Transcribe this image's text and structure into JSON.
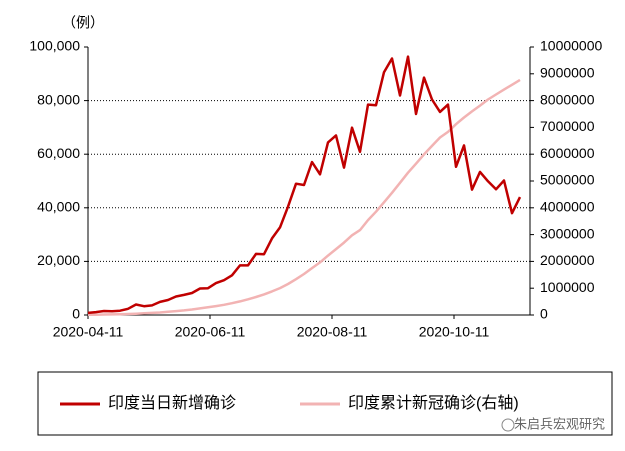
{
  "chart_data": {
    "type": "line",
    "unit_label": "（例）",
    "x": [
      "2020-04-11",
      "2020-04-15",
      "2020-04-19",
      "2020-04-23",
      "2020-04-27",
      "2020-05-01",
      "2020-05-05",
      "2020-05-09",
      "2020-05-13",
      "2020-05-17",
      "2020-05-21",
      "2020-05-25",
      "2020-05-29",
      "2020-06-02",
      "2020-06-06",
      "2020-06-10",
      "2020-06-14",
      "2020-06-18",
      "2020-06-22",
      "2020-06-26",
      "2020-06-30",
      "2020-07-04",
      "2020-07-08",
      "2020-07-12",
      "2020-07-16",
      "2020-07-20",
      "2020-07-24",
      "2020-07-28",
      "2020-08-01",
      "2020-08-05",
      "2020-08-09",
      "2020-08-13",
      "2020-08-17",
      "2020-08-21",
      "2020-08-25",
      "2020-08-29",
      "2020-09-02",
      "2020-09-06",
      "2020-09-10",
      "2020-09-14",
      "2020-09-18",
      "2020-09-22",
      "2020-09-26",
      "2020-09-30",
      "2020-10-04",
      "2020-10-08",
      "2020-10-12",
      "2020-10-16",
      "2020-10-20",
      "2020-10-24",
      "2020-10-28",
      "2020-11-01",
      "2020-11-05",
      "2020-11-09",
      "2020-11-13"
    ],
    "series": [
      {
        "name": "印度当日新增确诊",
        "color": "#c00000",
        "values": [
          800,
          1100,
          1500,
          1400,
          1600,
          2300,
          3900,
          3300,
          3600,
          4900,
          5600,
          6900,
          7500,
          8200,
          9900,
          10000,
          11900,
          13000,
          14800,
          18500,
          18500,
          22800,
          22700,
          28600,
          32700,
          40400,
          49000,
          48500,
          57100,
          52500,
          64400,
          67000,
          55000,
          69900,
          60900,
          78500,
          78300,
          90600,
          95700,
          81900,
          96400,
          75000,
          88600,
          80400,
          75800,
          78500,
          55300,
          63300,
          46800,
          53400,
          49900,
          46900,
          50200,
          38000,
          44000
        ]
      },
      {
        "name": "印度累计新冠确诊(右轴)",
        "color": "#f2b3b3",
        "axis": "y2",
        "values": [
          7600,
          12000,
          17000,
          23000,
          29000,
          37000,
          49000,
          62000,
          78000,
          95000,
          118000,
          145000,
          173000,
          207000,
          246000,
          286000,
          332000,
          381000,
          440000,
          508000,
          585000,
          673000,
          767000,
          879000,
          1003000,
          1155000,
          1337000,
          1531000,
          1750000,
          1964000,
          2215000,
          2459000,
          2702000,
          2975000,
          3167000,
          3542000,
          3853000,
          4204000,
          4560000,
          4931000,
          5308000,
          5647000,
          5992000,
          6310000,
          6623000,
          6833000,
          7120000,
          7370000,
          7597000,
          7814000,
          8040000,
          8229000,
          8411000,
          8591000,
          8773000
        ]
      }
    ],
    "xlim": [
      "2020-04-11",
      "2020-11-18"
    ],
    "xticks": [
      "2020-04-11",
      "2020-06-11",
      "2020-08-11",
      "2020-10-11"
    ],
    "ylim": [
      0,
      100000
    ],
    "yticks": [
      0,
      {
        "value": 20000,
        "label": "20,000"
      },
      {
        "value": 40000,
        "label": "40,000"
      },
      {
        "value": 60000,
        "label": "60,000"
      },
      {
        "value": 80000,
        "label": "80,000"
      },
      {
        "value": 100000,
        "label": "100,000"
      }
    ],
    "y2lim": [
      0,
      10000000
    ],
    "y2ticks": [
      0,
      1000000,
      2000000,
      3000000,
      4000000,
      5000000,
      6000000,
      7000000,
      8000000,
      9000000,
      10000000
    ],
    "grid": true,
    "watermark": "朱启兵宏观研究"
  }
}
